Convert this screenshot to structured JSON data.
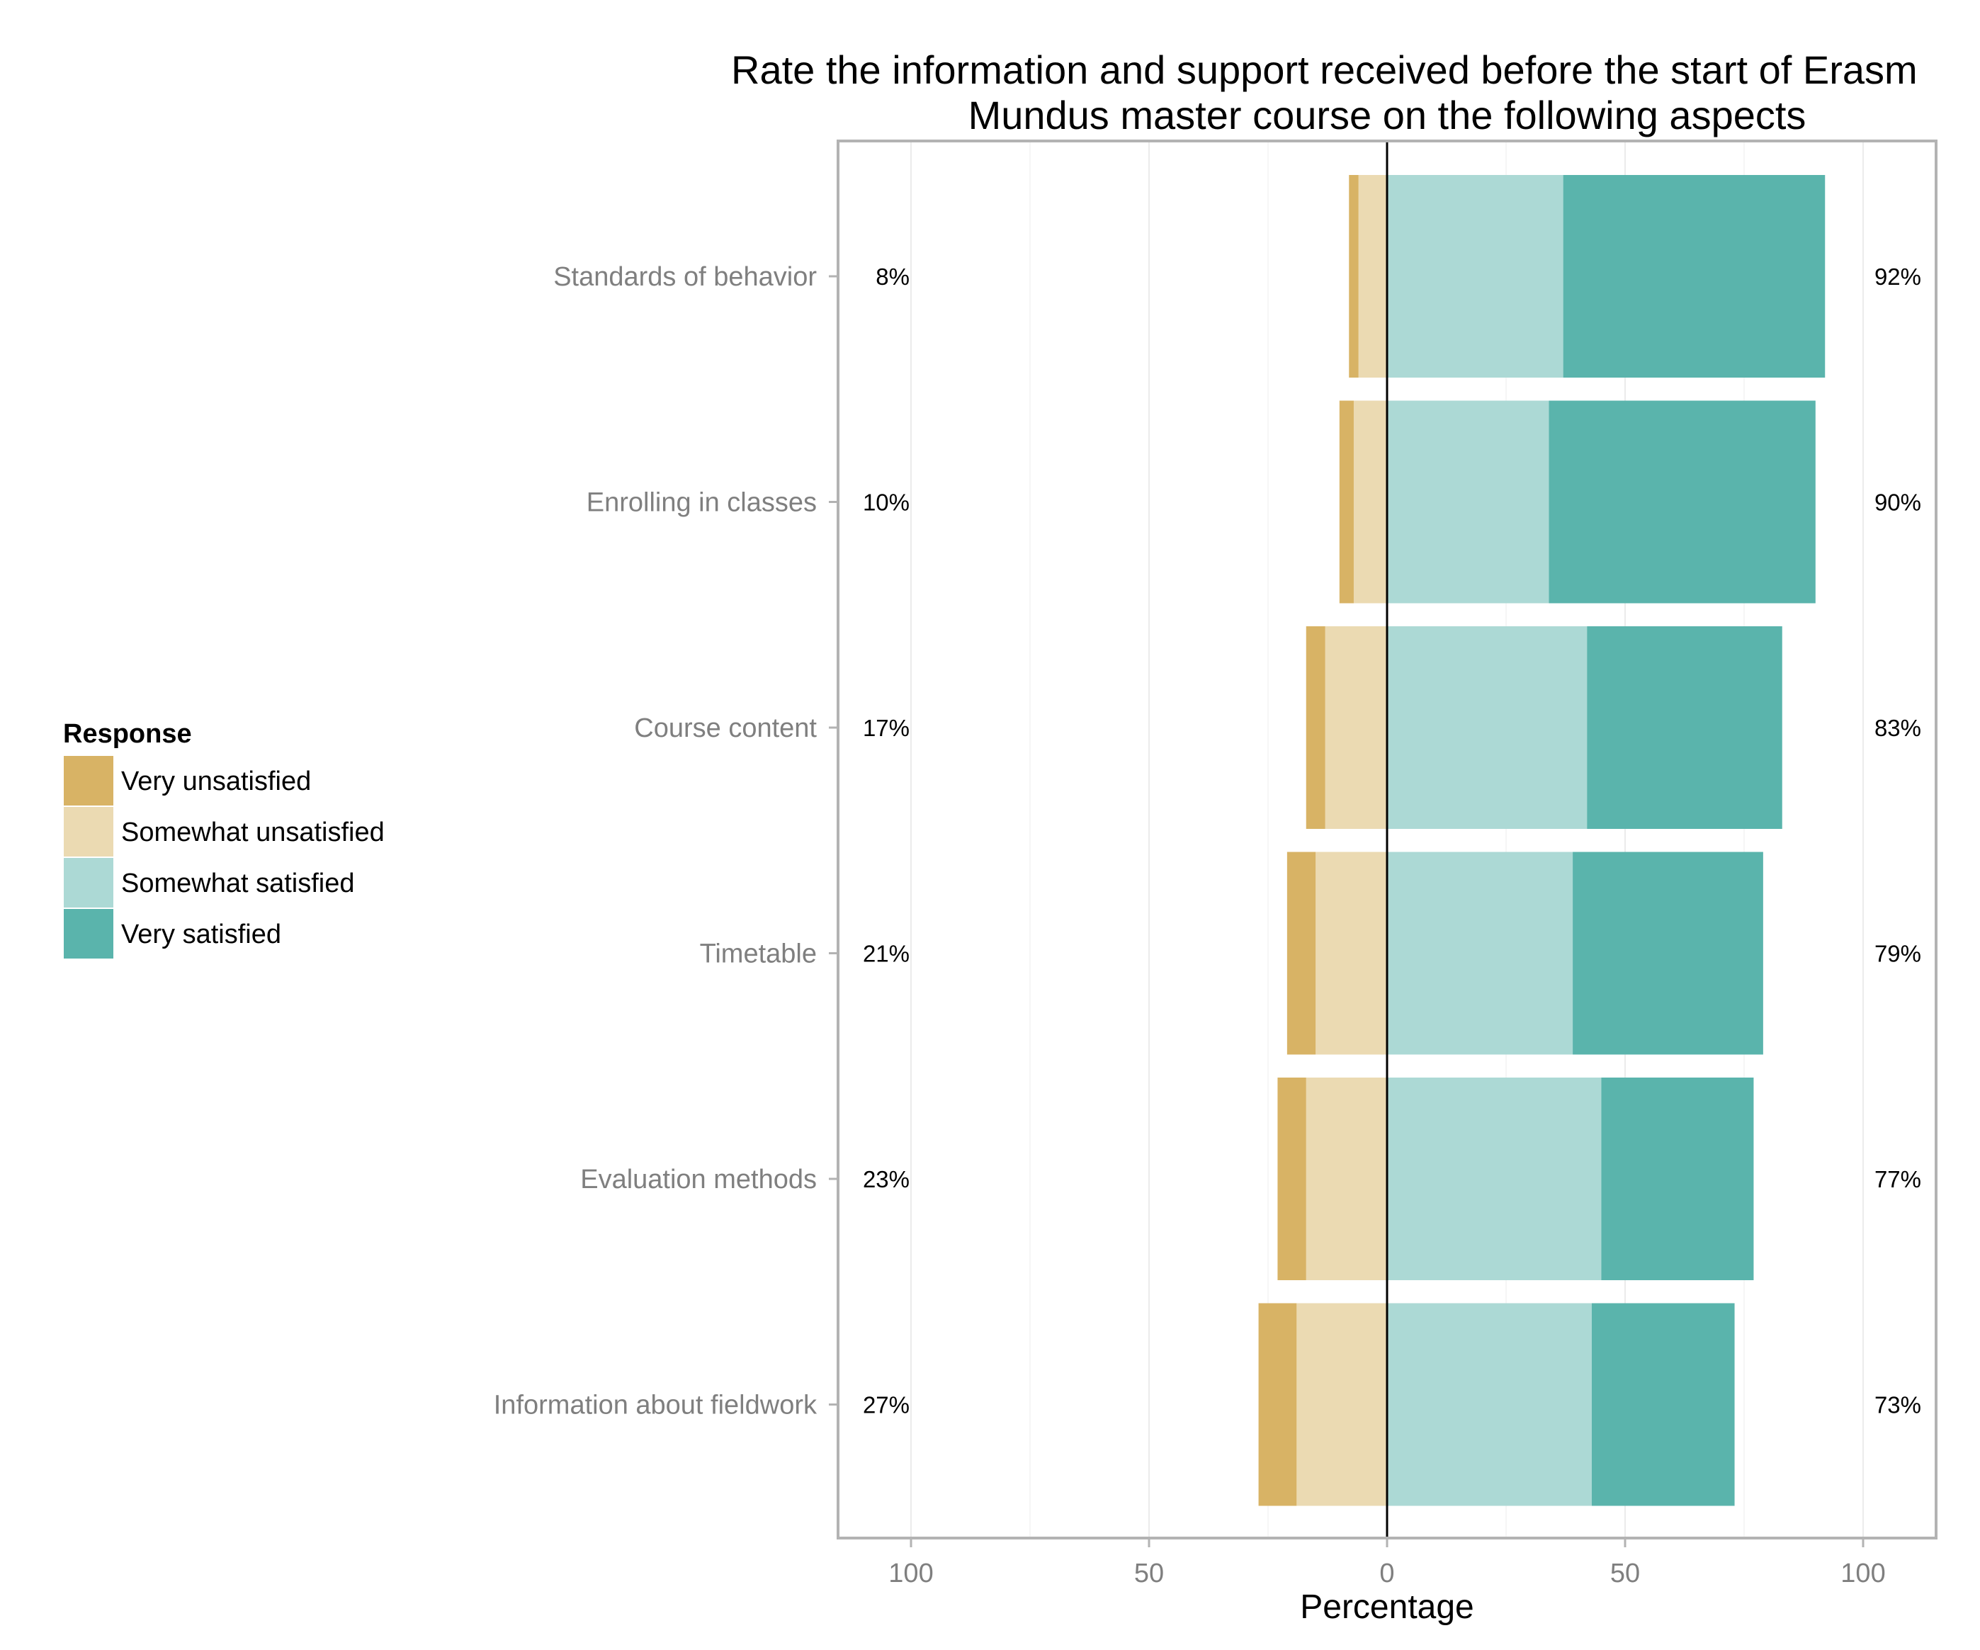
{
  "chart_data": {
    "type": "bar",
    "orientation": "horizontal-diverging",
    "title": "Rate the information and support received before the start of Erasmus Mundus master course on the following aspects",
    "title_lines": [
      "Rate the information and support received before the start of Erasm",
      "Mundus master course on the following aspects"
    ],
    "xlabel": "Percentage",
    "ylabel": "",
    "xlim": [
      -100,
      100
    ],
    "xticks": [
      -100,
      -50,
      0,
      50,
      100
    ],
    "xtick_labels": [
      "100",
      "50",
      "0",
      "50",
      "100"
    ],
    "grid": true,
    "legend_position": "left",
    "legend_title": "Response",
    "categories": [
      "Standards of behavior",
      "Enrolling in classes",
      "Course content",
      "Timetable",
      "Evaluation methods",
      "Information about fieldwork"
    ],
    "series": [
      {
        "name": "Very unsatisfied",
        "color": "#D8B365",
        "values": [
          2,
          3,
          4,
          6,
          6,
          8
        ]
      },
      {
        "name": "Somewhat unsatisfied",
        "color": "#EBDAB2",
        "values": [
          6,
          7,
          13,
          15,
          17,
          19
        ]
      },
      {
        "name": "Somewhat satisfied",
        "color": "#ACD9D5",
        "values": [
          37,
          34,
          42,
          39,
          45,
          43
        ]
      },
      {
        "name": "Very satisfied",
        "color": "#5AB4AC",
        "values": [
          55,
          56,
          41,
          40,
          32,
          30
        ]
      }
    ],
    "left_totals": [
      "8%",
      "10%",
      "17%",
      "21%",
      "23%",
      "27%"
    ],
    "right_totals": [
      "92%",
      "90%",
      "83%",
      "79%",
      "77%",
      "73%"
    ]
  }
}
